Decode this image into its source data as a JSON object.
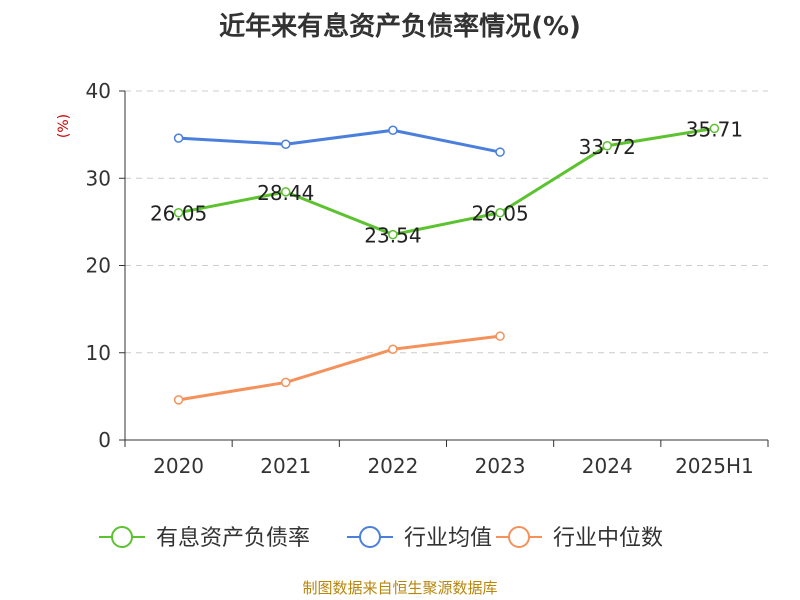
{
  "chart_data": {
    "type": "line",
    "title": "近年来有息资产负债率情况(%)",
    "ylabel": "(%)",
    "xlabel": "",
    "categories": [
      "2020",
      "2021",
      "2022",
      "2023",
      "2024",
      "2025H1"
    ],
    "ylim": [
      0,
      40
    ],
    "yticks": [
      0,
      10,
      20,
      30,
      40
    ],
    "grid": true,
    "legend_position": "bottom",
    "series": [
      {
        "name": "有息资产负债率",
        "color": "#5cc22f",
        "values": [
          26.05,
          28.44,
          23.54,
          26.05,
          33.72,
          35.71
        ],
        "show_labels": true
      },
      {
        "name": "行业均值",
        "color": "#4a7fdc",
        "values": [
          34.6,
          33.9,
          35.5,
          33.0,
          null,
          null
        ],
        "show_labels": false
      },
      {
        "name": "行业中位数",
        "color": "#f5915a",
        "values": [
          4.6,
          6.6,
          10.4,
          11.9,
          null,
          null
        ],
        "show_labels": false
      }
    ]
  },
  "source_text": "制图数据来自恒生聚源数据库"
}
